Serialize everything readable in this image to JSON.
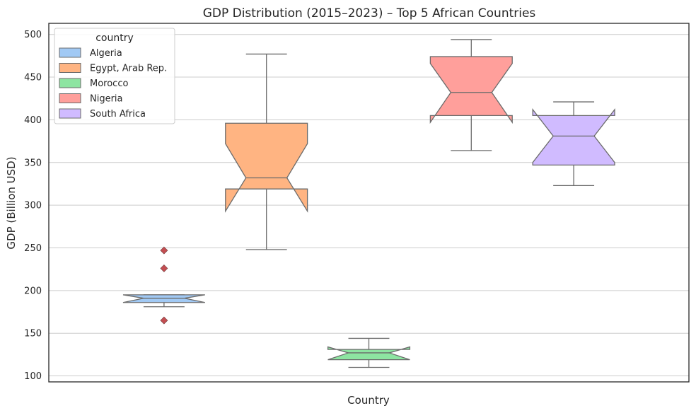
{
  "chart_data": {
    "type": "box",
    "title": "GDP Distribution (2015–2023) – Top 5 African Countries",
    "xlabel": "Country",
    "ylabel": "GDP (Billion USD)",
    "ylim": [
      93,
      513
    ],
    "yticks": [
      100,
      150,
      200,
      250,
      300,
      350,
      400,
      450,
      500
    ],
    "grid": "horizontal",
    "notched": true,
    "legend": {
      "title": "country",
      "placement": "top-left"
    },
    "series": [
      {
        "name": "Algeria",
        "color": "#a1c9f4",
        "whisker_low": 181,
        "q1": 186,
        "median": 191,
        "q3": 195,
        "whisker_high": 195,
        "notch_low": 186,
        "notch_high": 195,
        "outliers": [
          247,
          226,
          165
        ]
      },
      {
        "name": "Egypt, Arab Rep.",
        "color": "#ffb482",
        "whisker_low": 248,
        "q1": 319,
        "median": 332,
        "q3": 396,
        "whisker_high": 477,
        "notch_low": 293,
        "notch_high": 372,
        "outliers": []
      },
      {
        "name": "Morocco",
        "color": "#8de5a1",
        "whisker_low": 110,
        "q1": 119,
        "median": 127,
        "q3": 131,
        "whisker_high": 144,
        "notch_low": 119,
        "notch_high": 134,
        "outliers": []
      },
      {
        "name": "Nigeria",
        "color": "#ff9f9b",
        "whisker_low": 364,
        "q1": 405,
        "median": 432,
        "q3": 474,
        "whisker_high": 494,
        "notch_low": 397,
        "notch_high": 466,
        "outliers": []
      },
      {
        "name": "South Africa",
        "color": "#d0bbff",
        "whisker_low": 323,
        "q1": 347,
        "median": 381,
        "q3": 405,
        "whisker_high": 421,
        "notch_low": 350,
        "notch_high": 412,
        "outliers": []
      }
    ]
  }
}
